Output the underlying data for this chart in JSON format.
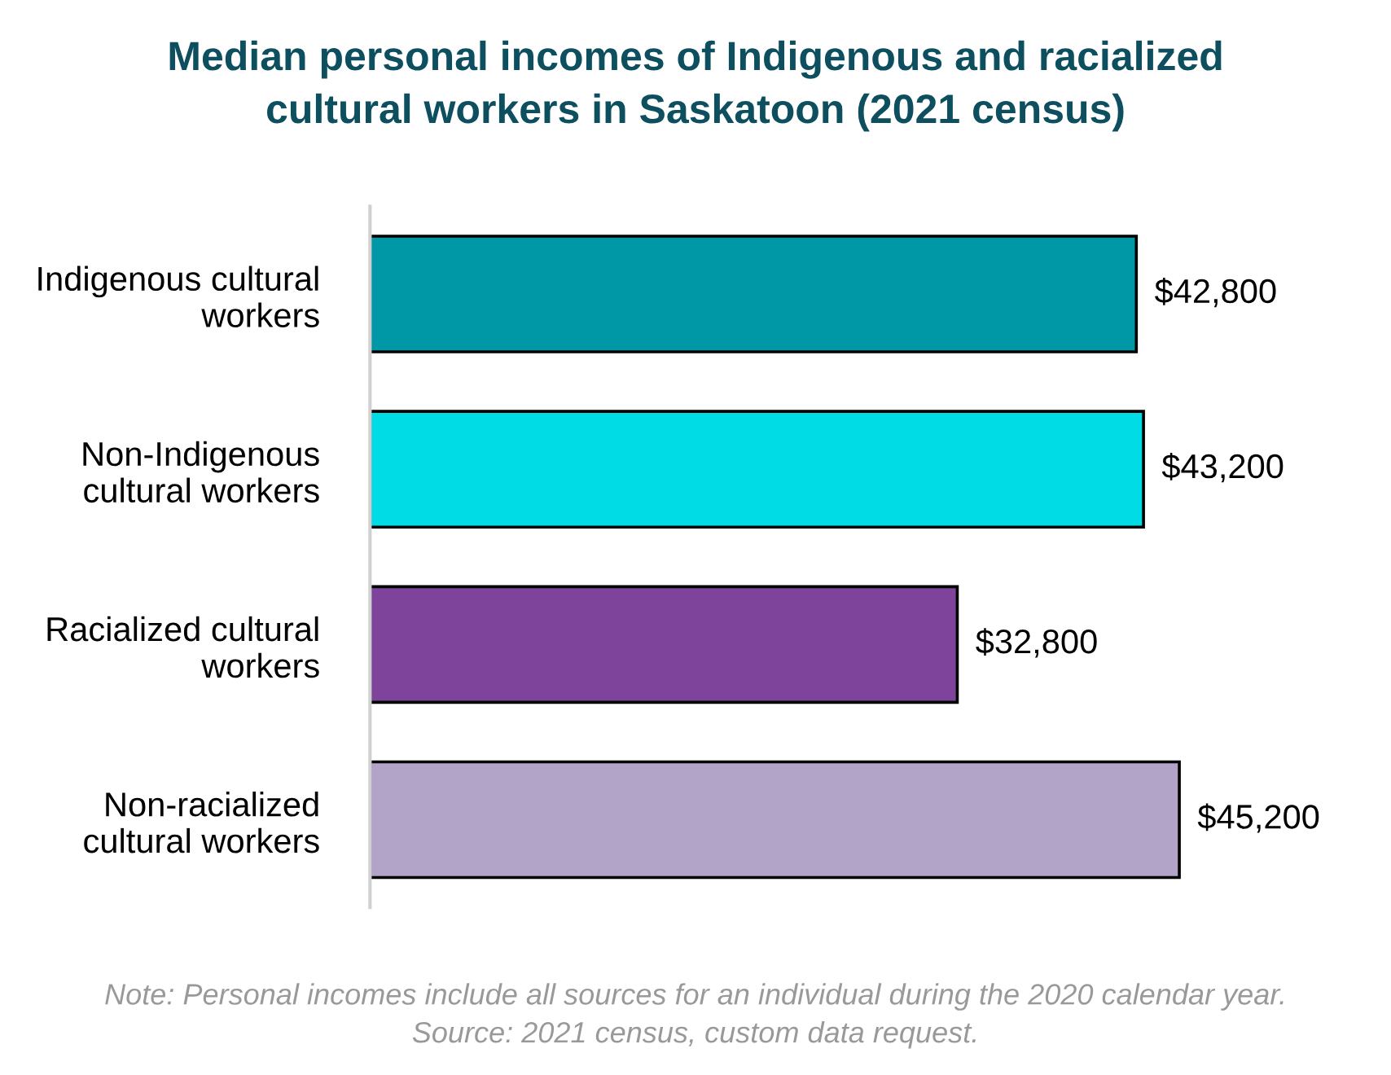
{
  "chart_data": {
    "type": "bar",
    "orientation": "horizontal",
    "title": "Median personal incomes of Indigenous and racialized\ncultural workers in Saskatoon (2021 census)",
    "categories": [
      "Indigenous cultural\nworkers",
      "Non-Indigenous\ncultural workers",
      "Racialized cultural\nworkers",
      "Non-racialized\ncultural workers"
    ],
    "values": [
      42800,
      43200,
      32800,
      45200
    ],
    "colors": [
      "#0097a7",
      "#00dce6",
      "#7e449b",
      "#b2a3c8"
    ],
    "value_labels": [
      "$42,800",
      "$43,200",
      "$32,800",
      "$45,200"
    ],
    "grid": false,
    "legend": false,
    "annotations": [
      "Note: Personal incomes include all sources for an individual during the 2020 calendar year.\nSource: 2021 census, custom data request."
    ]
  }
}
